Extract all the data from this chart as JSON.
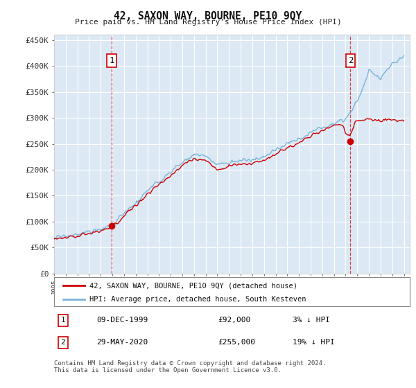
{
  "title": "42, SAXON WAY, BOURNE, PE10 9QY",
  "subtitle": "Price paid vs. HM Land Registry's House Price Index (HPI)",
  "ylabel_ticks": [
    "£0",
    "£50K",
    "£100K",
    "£150K",
    "£200K",
    "£250K",
    "£300K",
    "£350K",
    "£400K",
    "£450K"
  ],
  "ytick_values": [
    0,
    50000,
    100000,
    150000,
    200000,
    250000,
    300000,
    350000,
    400000,
    450000
  ],
  "ylim": [
    0,
    460000
  ],
  "xlim_start": 1995.0,
  "xlim_end": 2025.5,
  "sale1_x": 1999.94,
  "sale1_y": 92000,
  "sale1_label": "1",
  "sale2_x": 2020.41,
  "sale2_y": 255000,
  "sale2_label": "2",
  "hpi_color": "#7ab3d9",
  "price_color": "#cc0000",
  "bg_color": "#dce9f5",
  "plot_bg": "#dce9f5",
  "grid_color": "#ffffff",
  "legend_line1": "42, SAXON WAY, BOURNE, PE10 9QY (detached house)",
  "legend_line2": "HPI: Average price, detached house, South Kesteven",
  "annotation1_date": "09-DEC-1999",
  "annotation1_price": "£92,000",
  "annotation1_hpi": "3% ↓ HPI",
  "annotation2_date": "29-MAY-2020",
  "annotation2_price": "£255,000",
  "annotation2_hpi": "19% ↓ HPI",
  "footer": "Contains HM Land Registry data © Crown copyright and database right 2024.\nThis data is licensed under the Open Government Licence v3.0.",
  "hpi_anchors_x": [
    1995,
    1996,
    1997,
    1998,
    1999,
    2000,
    2001,
    2002,
    2003,
    2004,
    2005,
    2006,
    2007,
    2008,
    2009,
    2010,
    2011,
    2012,
    2013,
    2014,
    2015,
    2016,
    2017,
    2018,
    2019,
    2020,
    2021,
    2022,
    2023,
    2024,
    2025
  ],
  "hpi_anchors_y": [
    68000,
    72000,
    76000,
    80000,
    85000,
    95000,
    115000,
    135000,
    158000,
    178000,
    195000,
    215000,
    230000,
    225000,
    210000,
    215000,
    218000,
    218000,
    225000,
    238000,
    250000,
    260000,
    272000,
    282000,
    292000,
    298000,
    330000,
    385000,
    360000,
    375000,
    370000
  ],
  "price_anchors_x": [
    1995,
    1996,
    1997,
    1998,
    1999,
    2000,
    2001,
    2002,
    2003,
    2004,
    2005,
    2006,
    2007,
    2008,
    2009,
    2010,
    2011,
    2012,
    2013,
    2014,
    2015,
    2016,
    2017,
    2018,
    2019,
    2020,
    2021,
    2022,
    2023,
    2024,
    2025
  ],
  "price_anchors_y": [
    65000,
    69000,
    72000,
    76000,
    82000,
    92000,
    110000,
    130000,
    152000,
    172000,
    188000,
    208000,
    222000,
    218000,
    200000,
    207000,
    210000,
    212000,
    218000,
    230000,
    242000,
    252000,
    265000,
    277000,
    288000,
    285000,
    295000,
    298000,
    295000,
    295000,
    294000
  ],
  "hpi_noise_scale": 3500,
  "price_noise_scale": 2500,
  "random_seed": 17
}
